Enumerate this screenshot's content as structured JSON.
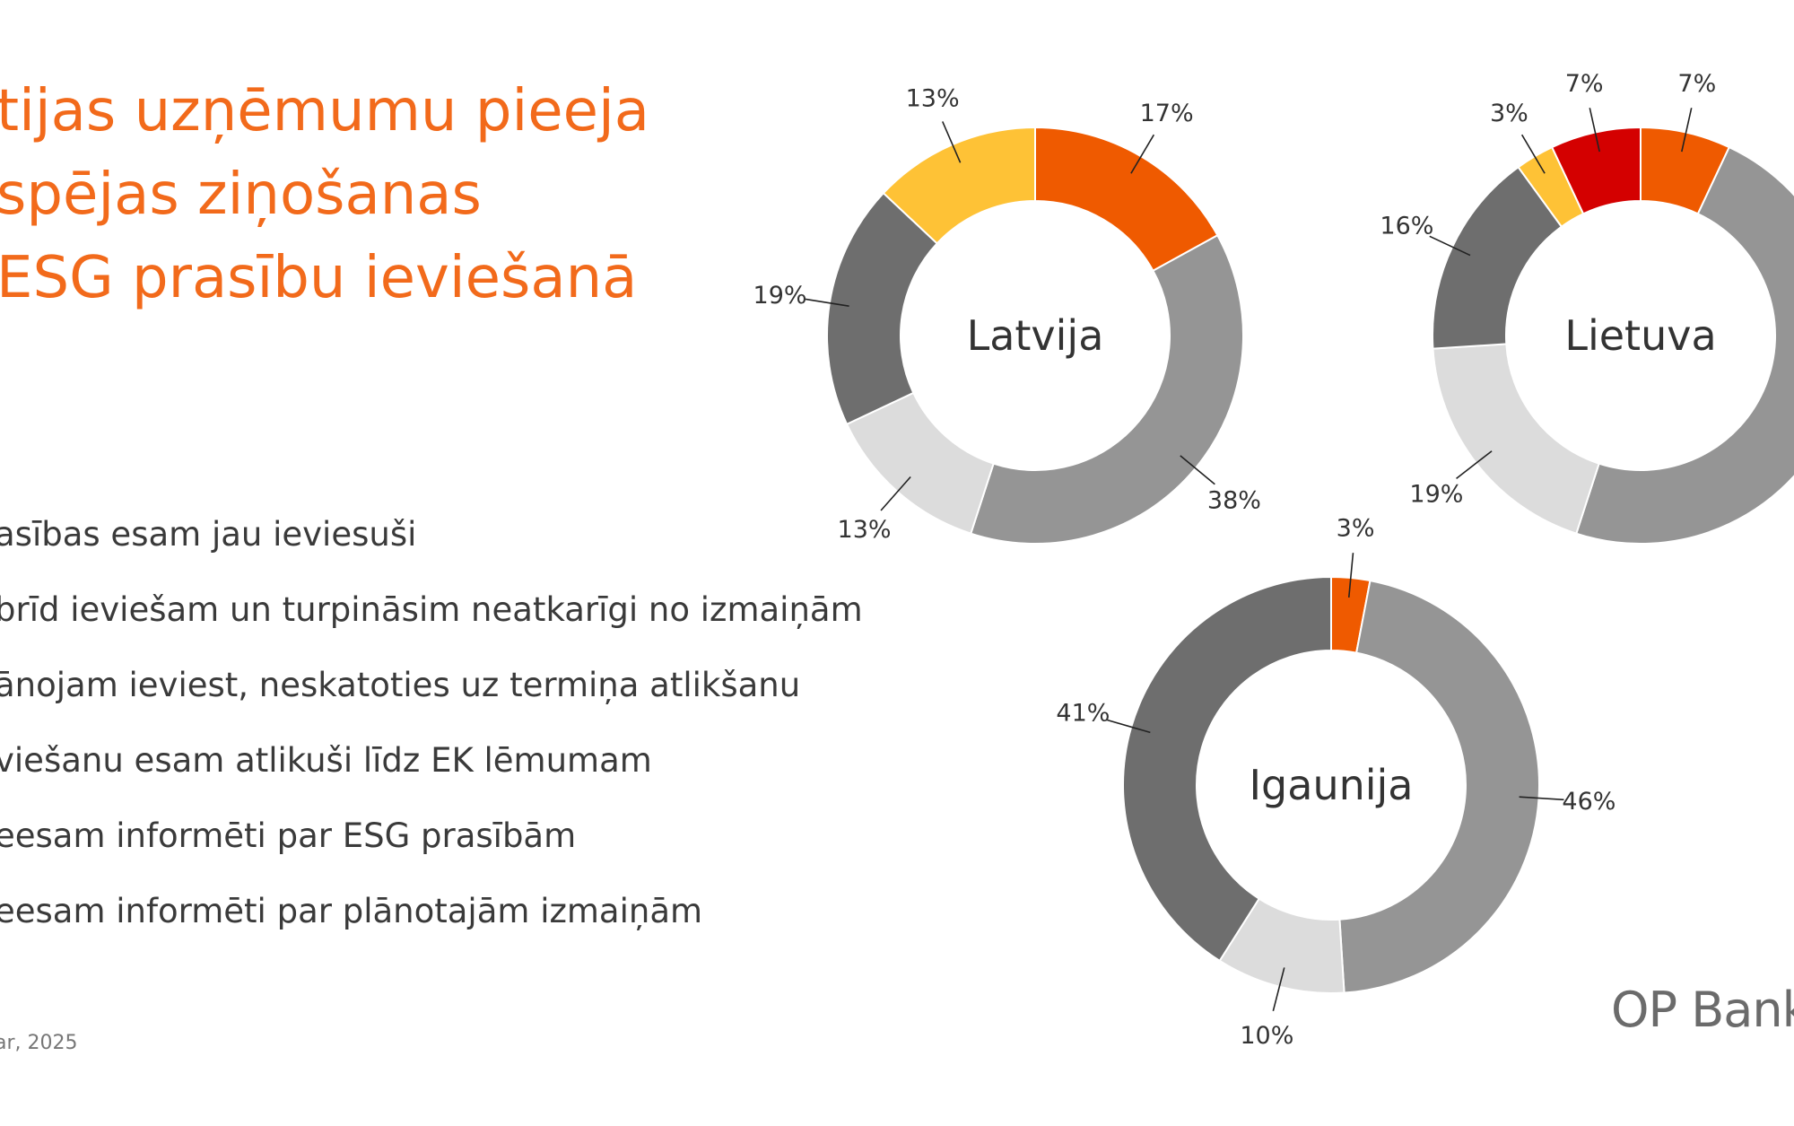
{
  "title": {
    "line1": "tijas uzņēmumu pieeja",
    "line2": "spējas ziņošanas",
    "line3": "ESG prasību ieviešanā"
  },
  "legend": [
    "asības esam jau ieviesuši",
    "brīd ieviešam un turpināsim neatkarīgi no izmaiņām",
    "ānojam ieviest, neskatoties uz termiņa atlikšanu",
    "viešanu esam atlikuši līdz EK lēmumam",
    "eesam informēti par ESG prasībām",
    "eesam informēti par plānotajām izmaiņām"
  ],
  "source": "ar, 2025",
  "brand": "OP Bank",
  "colors": {
    "orange": "#ef5a00",
    "mid_gray": "#959595",
    "light_gray": "#dcdcdc",
    "dark_gray": "#6e6e6e",
    "yellow": "#fec236",
    "red": "#d40000"
  },
  "chart_data": [
    {
      "type": "pie",
      "center_label": "Latvija",
      "slices": [
        {
          "value": 17,
          "label": "17%",
          "color": "#ef5a00"
        },
        {
          "value": 38,
          "label": "38%",
          "color": "#959595"
        },
        {
          "value": 13,
          "label": "13%",
          "color": "#dcdcdc"
        },
        {
          "value": 19,
          "label": "19%",
          "color": "#6e6e6e"
        },
        {
          "value": 13,
          "label": "13%",
          "color": "#fec236"
        }
      ]
    },
    {
      "type": "pie",
      "center_label": "Lietuva",
      "slices": [
        {
          "value": 7,
          "label": "7%",
          "color": "#ef5a00"
        },
        {
          "value": 48,
          "label": "",
          "color": "#959595"
        },
        {
          "value": 19,
          "label": "19%",
          "color": "#dcdcdc"
        },
        {
          "value": 16,
          "label": "16%",
          "color": "#6e6e6e"
        },
        {
          "value": 3,
          "label": "3%",
          "color": "#fec236"
        },
        {
          "value": 7,
          "label": "7%",
          "color": "#d40000"
        }
      ]
    },
    {
      "type": "pie",
      "center_label": "Igaunija",
      "slices": [
        {
          "value": 3,
          "label": "3%",
          "color": "#ef5a00"
        },
        {
          "value": 46,
          "label": "46%",
          "color": "#959595"
        },
        {
          "value": 10,
          "label": "10%",
          "color": "#dcdcdc"
        },
        {
          "value": 41,
          "label": "41%",
          "color": "#6e6e6e"
        }
      ]
    }
  ]
}
